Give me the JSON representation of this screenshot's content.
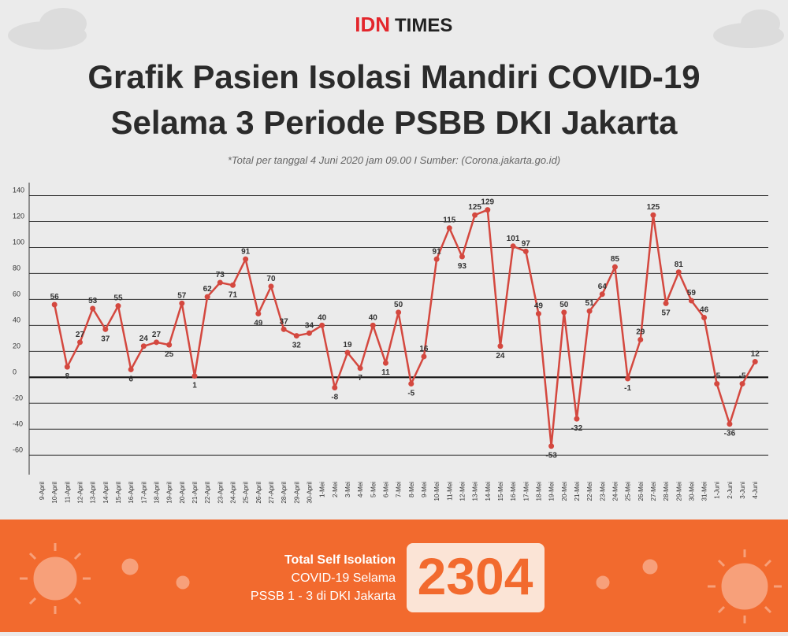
{
  "header": {
    "logo_idn": "IDN",
    "logo_times": "TIMES"
  },
  "chart_data": {
    "type": "line",
    "title": [
      "Grafik Pasien Isolasi Mandiri COVID-19",
      "Selama 3 Periode PSBB DKI Jakarta"
    ],
    "subtitle": "*Total per tanggal 4 Juni 2020 jam 09.00  I  Sumber: (Corona.jakarta.go.id)",
    "categories": [
      "9-April",
      "10-April",
      "11-April",
      "12-April",
      "13-April",
      "14-April",
      "15-April",
      "16-April",
      "17-April",
      "18-April",
      "19-April",
      "20-April",
      "21-April",
      "22-April",
      "23-April",
      "24-April",
      "25-April",
      "26-April",
      "27-April",
      "28-April",
      "29-April",
      "30-April",
      "1-Mei",
      "2-Mei",
      "3-Mei",
      "4-Mei",
      "5-Mei",
      "6-Mei",
      "7-Mei",
      "8-Mei",
      "9-Mei",
      "10-Mei",
      "11-Mei",
      "12-Mei",
      "13-Mei",
      "14-Mei",
      "15-Mei",
      "16-Mei",
      "17-Mei",
      "18-Mei",
      "19-Mei",
      "20-Mei",
      "21-Mei",
      "22-Mei",
      "23-Mei",
      "24-Mei",
      "25-Mei",
      "26-Mei",
      "27-Mei",
      "28-Mei",
      "29-Mei",
      "30-Mei",
      "31-Mei",
      "1-Juni",
      "2-Juni",
      "3-Juni",
      "4-Juni"
    ],
    "values": [
      null,
      56,
      8,
      27,
      53,
      37,
      55,
      6,
      24,
      27,
      25,
      57,
      1,
      62,
      73,
      71,
      91,
      49,
      70,
      37,
      32,
      34,
      40,
      -8,
      19,
      7,
      40,
      11,
      50,
      -5,
      16,
      91,
      115,
      93,
      125,
      129,
      24,
      101,
      97,
      49,
      -53,
      50,
      -32,
      51,
      64,
      85,
      -1,
      29,
      125,
      57,
      81,
      59,
      46,
      -5,
      -36,
      -5,
      12
    ],
    "color": "#d4483f",
    "ylim": [
      -75,
      150
    ],
    "yticks": [
      -60,
      -40,
      -20,
      0,
      20,
      40,
      60,
      80,
      100,
      120,
      140
    ],
    "grid": true
  },
  "summary": {
    "label_prefix": "Total",
    "label_bold": "Self Isolation",
    "label_line2": "COVID-19 Selama",
    "label_line3": "PSSB 1 - 3 di DKI Jakarta",
    "value": 2304
  }
}
